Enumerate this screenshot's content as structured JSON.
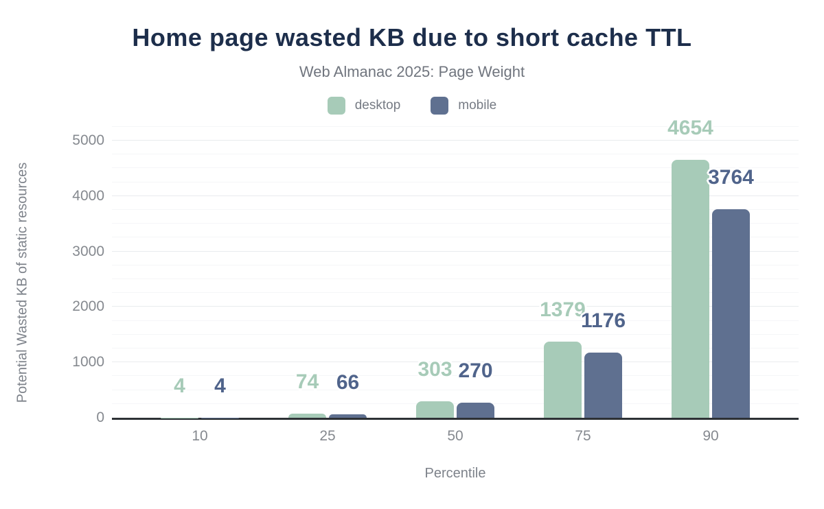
{
  "title": "Home page wasted KB due to short cache TTL",
  "subtitle": "Web Almanac 2025: Page Weight",
  "chart_data": {
    "type": "bar",
    "categories": [
      "10",
      "25",
      "50",
      "75",
      "90"
    ],
    "series": [
      {
        "name": "desktop",
        "color": "#a7cbb8",
        "label_color": "#a7cbb8",
        "values": [
          4,
          74,
          303,
          1379,
          4654
        ]
      },
      {
        "name": "mobile",
        "color": "#5f7090",
        "label_color": "#50648b",
        "values": [
          4,
          66,
          270,
          1176,
          3764
        ]
      }
    ],
    "xlabel": "Percentile",
    "ylabel": "Potential Wasted KB of static resources",
    "ylim": [
      0,
      5334
    ],
    "yticks": [
      0,
      1000,
      2000,
      3000,
      4000,
      5000
    ],
    "minor_tick_step": 250,
    "grid": "horizontal-major-and-minor",
    "legend_position": "top",
    "bar_corner_radius": 8,
    "data_labels": "above-bars"
  },
  "colors": {
    "title": "#1d2e4b",
    "subtitle": "#70757e",
    "axis_text": "#85898f",
    "axis_line": "#2d3135",
    "major_gridline": "#e9ebee",
    "minor_gridline": "#f5f6f8",
    "background": "#ffffff"
  }
}
